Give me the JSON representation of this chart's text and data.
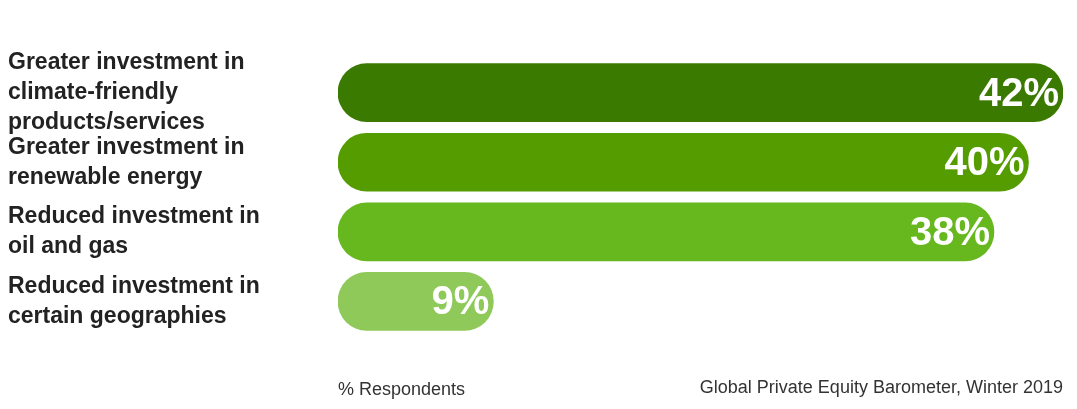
{
  "chart_data": {
    "type": "bar",
    "orientation": "horizontal",
    "categories": [
      "Greater investment in climate-friendly products/services",
      "Greater investment in renewable energy",
      "Reduced investment in oil and gas",
      "Reduced investment in certain geographies"
    ],
    "values": [
      42,
      40,
      38,
      9
    ],
    "colors": [
      "#3b7a00",
      "#559c00",
      "#66b81e",
      "#8ec95a"
    ],
    "value_labels": [
      "42%",
      "40%",
      "38%",
      "9%"
    ],
    "tick_labels": "y",
    "legend": false,
    "xlabel": "% Respondents",
    "annotations": [
      "Global Private Equity Barometer, Winter 2019"
    ]
  }
}
